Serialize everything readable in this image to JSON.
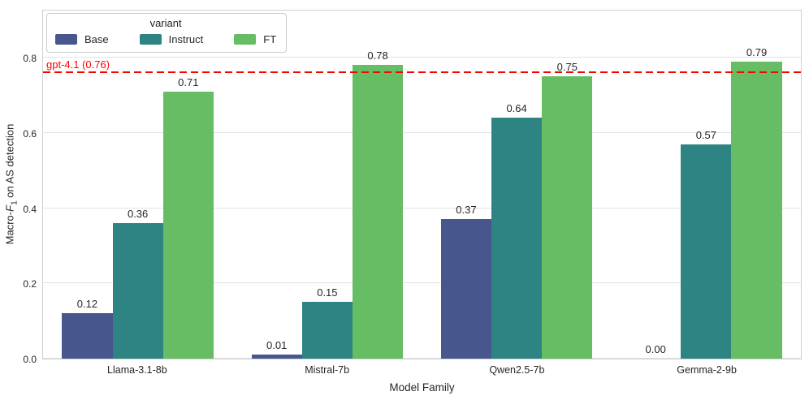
{
  "chart_data": {
    "type": "bar",
    "title": "",
    "categories": [
      "Llama-3.1-8b",
      "Mistral-7b",
      "Qwen2.5-7b",
      "Gemma-2-9b"
    ],
    "series": [
      {
        "name": "Base",
        "color": "#47568c",
        "values": [
          0.12,
          0.01,
          0.37,
          0.0
        ]
      },
      {
        "name": "Instruct",
        "color": "#2d8482",
        "values": [
          0.36,
          0.15,
          0.64,
          0.57
        ]
      },
      {
        "name": "FT",
        "color": "#66bd63",
        "values": [
          0.71,
          0.78,
          0.75,
          0.79
        ]
      }
    ],
    "bar_labels_format": "0.00",
    "xlabel": "Model Family",
    "ylabel": "Macro-F1 on AS detection",
    "ylabel_parts": {
      "prefix": "Macro-",
      "f": "F",
      "sub": "1",
      "suffix": " on AS detection"
    },
    "ytick_labels": [
      "0.0",
      "0.2",
      "0.4",
      "0.6",
      "0.8"
    ],
    "yticks": [
      0.0,
      0.2,
      0.4,
      0.6,
      0.8
    ],
    "ylim": [
      0,
      0.925
    ],
    "grid": true,
    "legend": {
      "title": "variant",
      "position": "upper left",
      "entries": [
        "Base",
        "Instruct",
        "FT"
      ]
    },
    "reference_line": {
      "value": 0.76,
      "label": "gpt-4.1 (0.76)",
      "color": "#ff0000",
      "style": "dashed"
    }
  },
  "colors": {
    "background": "#ffffff",
    "grid": "#e2e2e2",
    "spine": "#cfcfcf",
    "text": "#262626",
    "reference": "#ff0000"
  }
}
